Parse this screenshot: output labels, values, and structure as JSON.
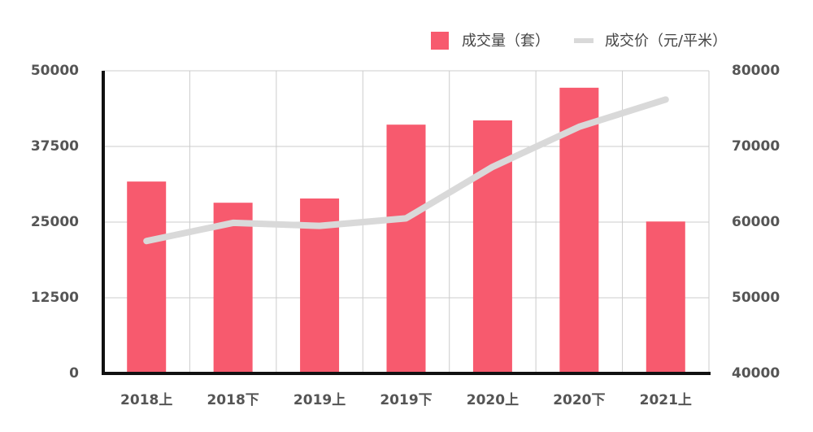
{
  "chart_data": {
    "type": "bar",
    "categories": [
      "2018上",
      "2018下",
      "2019上",
      "2019下",
      "2020上",
      "2020下",
      "2021上"
    ],
    "series": [
      {
        "name": "成交量（套）",
        "type": "bar",
        "axis": "y",
        "color": "#f75a6e",
        "values": [
          31700,
          28200,
          28900,
          41100,
          41800,
          47200,
          25100
        ]
      },
      {
        "name": "成交价（元/平米）",
        "type": "line",
        "axis": "y2",
        "color": "#d9d9d9",
        "values": [
          57500,
          59900,
          59500,
          60500,
          67300,
          72600,
          76200
        ]
      }
    ],
    "ylim": [
      0,
      50000
    ],
    "yticks": [
      0,
      12500,
      25000,
      37500,
      50000
    ],
    "y2lim": [
      40000,
      80000
    ],
    "y2ticks": [
      40000,
      50000,
      60000,
      70000,
      80000
    ],
    "grid": true,
    "legend": "top-right"
  }
}
